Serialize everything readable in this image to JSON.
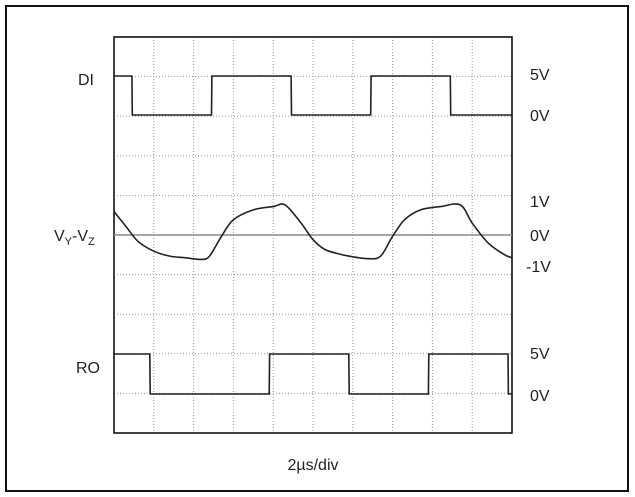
{
  "chart_data": {
    "type": "line",
    "xlabel": "2µs/div",
    "x_divisions": 10,
    "grid": true,
    "colors": {
      "trace": "#222222",
      "grid": "#9a9a9a",
      "frame": "#111111",
      "reference": "#888888"
    },
    "traces": [
      {
        "label": "DI",
        "scale_labels": [
          "5V",
          "0V"
        ],
        "levels": [
          5,
          0
        ],
        "t_div": [
          0,
          0.45,
          0.46,
          1.45,
          1.46,
          2.45,
          2.46,
          3.45,
          3.46,
          4.45,
          4.46,
          5.45,
          5.46,
          6.45,
          6.46,
          7.45,
          7.46,
          8.45,
          8.46,
          9.45,
          9.46,
          10.0
        ],
        "values_v": [
          5,
          5,
          0,
          0,
          0,
          0,
          5,
          5,
          5,
          5,
          0,
          0,
          0,
          0,
          5,
          5,
          5,
          5,
          0,
          0,
          0,
          0
        ]
      },
      {
        "label": "VY-VZ",
        "label_parts": {
          "base1": "V",
          "sub1": "Y",
          "sep": "-",
          "base2": "V",
          "sub2": "Z"
        },
        "scale_labels": [
          "1V",
          "0V",
          "-1V"
        ],
        "levels": [
          1,
          0,
          -1
        ],
        "t_div": [
          0.0,
          0.3,
          0.6,
          1.0,
          1.4,
          1.8,
          2.2,
          2.4,
          2.7,
          3.0,
          3.5,
          4.0,
          4.3,
          4.7,
          5.0,
          5.3,
          5.7,
          6.0,
          6.4,
          6.7,
          7.0,
          7.3,
          7.7,
          8.2,
          8.7,
          9.0,
          9.4,
          9.8,
          10.0
        ],
        "values_v": [
          0.65,
          0.2,
          -0.25,
          -0.55,
          -0.7,
          -0.75,
          -0.8,
          -0.7,
          -0.1,
          0.4,
          0.7,
          0.8,
          0.85,
          0.3,
          -0.2,
          -0.5,
          -0.65,
          -0.72,
          -0.78,
          -0.7,
          -0.1,
          0.4,
          0.7,
          0.8,
          0.85,
          0.3,
          -0.3,
          -0.65,
          -0.75
        ]
      },
      {
        "label": "RO",
        "scale_labels": [
          "5V",
          "0V"
        ],
        "levels": [
          5,
          0
        ],
        "t_div": [
          0,
          0.9,
          0.91,
          1.9,
          1.91,
          2.9,
          2.91,
          3.9,
          3.91,
          4.9,
          4.91,
          5.9,
          5.91,
          6.9,
          6.91,
          7.9,
          7.91,
          8.9,
          8.91,
          9.9,
          9.91,
          10.0
        ],
        "values_v": [
          5,
          5,
          0,
          0,
          0,
          0,
          0,
          0,
          5,
          5,
          5,
          5,
          0,
          0,
          0,
          0,
          5,
          5,
          5,
          5,
          0,
          0
        ]
      }
    ]
  }
}
